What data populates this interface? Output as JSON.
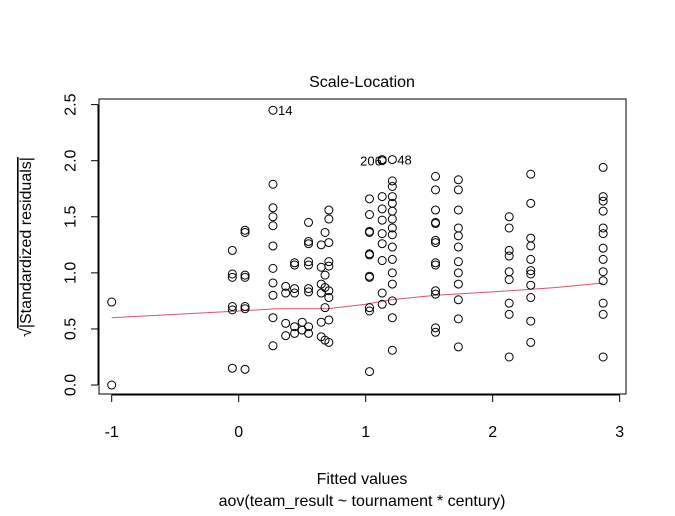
{
  "chart_data": {
    "type": "scatter",
    "title": "Scale-Location",
    "xlabel": "Fitted values",
    "subtitle": "aov(team_result ~ tournament * century)",
    "ylabel_radical": "√",
    "ylabel": "|Standardized residuals|",
    "xlim": [
      -1.1,
      3.05
    ],
    "ylim": [
      -0.08,
      2.55
    ],
    "x_ticks": [
      -1,
      0,
      1,
      2,
      3
    ],
    "x_tick_labels": [
      "-1",
      "0",
      "1",
      "2",
      "3"
    ],
    "y_ticks": [
      0.0,
      0.5,
      1.0,
      1.5,
      2.0,
      2.5
    ],
    "y_tick_labels": [
      "0.0",
      "0.5",
      "1.0",
      "1.5",
      "2.0",
      "2.5"
    ],
    "grid": false,
    "point_color": "#000000",
    "smooth_color": "#DF536B",
    "points": [
      {
        "x": -1.0,
        "y": 0.74
      },
      {
        "x": -1.0,
        "y": 0.0
      },
      {
        "x": -0.05,
        "y": 1.2
      },
      {
        "x": -0.05,
        "y": 0.99
      },
      {
        "x": -0.05,
        "y": 0.96
      },
      {
        "x": -0.05,
        "y": 0.7
      },
      {
        "x": -0.05,
        "y": 0.67
      },
      {
        "x": -0.05,
        "y": 0.15
      },
      {
        "x": 0.05,
        "y": 1.38
      },
      {
        "x": 0.05,
        "y": 1.36
      },
      {
        "x": 0.05,
        "y": 0.98
      },
      {
        "x": 0.05,
        "y": 0.96
      },
      {
        "x": 0.05,
        "y": 0.7
      },
      {
        "x": 0.05,
        "y": 0.68
      },
      {
        "x": 0.05,
        "y": 0.14
      },
      {
        "x": 0.27,
        "y": 2.45
      },
      {
        "x": 0.27,
        "y": 1.79
      },
      {
        "x": 0.27,
        "y": 1.58
      },
      {
        "x": 0.27,
        "y": 1.5
      },
      {
        "x": 0.27,
        "y": 1.42
      },
      {
        "x": 0.27,
        "y": 1.24
      },
      {
        "x": 0.27,
        "y": 1.04
      },
      {
        "x": 0.27,
        "y": 0.91
      },
      {
        "x": 0.27,
        "y": 0.8
      },
      {
        "x": 0.27,
        "y": 0.6
      },
      {
        "x": 0.27,
        "y": 0.35
      },
      {
        "x": 0.37,
        "y": 0.88
      },
      {
        "x": 0.37,
        "y": 0.82
      },
      {
        "x": 0.37,
        "y": 0.55
      },
      {
        "x": 0.37,
        "y": 0.44
      },
      {
        "x": 0.44,
        "y": 1.09
      },
      {
        "x": 0.44,
        "y": 1.07
      },
      {
        "x": 0.44,
        "y": 0.86
      },
      {
        "x": 0.44,
        "y": 0.82
      },
      {
        "x": 0.44,
        "y": 0.52
      },
      {
        "x": 0.44,
        "y": 0.46
      },
      {
        "x": 0.5,
        "y": 0.56
      },
      {
        "x": 0.5,
        "y": 0.49
      },
      {
        "x": 0.55,
        "y": 1.45
      },
      {
        "x": 0.55,
        "y": 1.28
      },
      {
        "x": 0.55,
        "y": 1.26
      },
      {
        "x": 0.55,
        "y": 1.1
      },
      {
        "x": 0.55,
        "y": 1.07
      },
      {
        "x": 0.55,
        "y": 0.86
      },
      {
        "x": 0.55,
        "y": 0.83
      },
      {
        "x": 0.55,
        "y": 0.52
      },
      {
        "x": 0.55,
        "y": 0.46
      },
      {
        "x": 0.65,
        "y": 1.25
      },
      {
        "x": 0.65,
        "y": 1.05
      },
      {
        "x": 0.65,
        "y": 0.9
      },
      {
        "x": 0.65,
        "y": 0.82
      },
      {
        "x": 0.65,
        "y": 0.56
      },
      {
        "x": 0.65,
        "y": 0.43
      },
      {
        "x": 0.68,
        "y": 1.36
      },
      {
        "x": 0.68,
        "y": 0.98
      },
      {
        "x": 0.68,
        "y": 0.87
      },
      {
        "x": 0.68,
        "y": 0.69
      },
      {
        "x": 0.68,
        "y": 0.4
      },
      {
        "x": 0.71,
        "y": 1.56
      },
      {
        "x": 0.71,
        "y": 1.48
      },
      {
        "x": 0.71,
        "y": 1.27
      },
      {
        "x": 0.71,
        "y": 1.1
      },
      {
        "x": 0.71,
        "y": 1.06
      },
      {
        "x": 0.71,
        "y": 0.84
      },
      {
        "x": 0.71,
        "y": 0.78
      },
      {
        "x": 0.71,
        "y": 0.58
      },
      {
        "x": 0.71,
        "y": 0.38
      },
      {
        "x": 1.03,
        "y": 1.66
      },
      {
        "x": 1.03,
        "y": 1.52
      },
      {
        "x": 1.03,
        "y": 1.37
      },
      {
        "x": 1.03,
        "y": 1.36
      },
      {
        "x": 1.03,
        "y": 1.17
      },
      {
        "x": 1.03,
        "y": 1.16
      },
      {
        "x": 1.03,
        "y": 0.97
      },
      {
        "x": 1.03,
        "y": 0.96
      },
      {
        "x": 1.03,
        "y": 0.69
      },
      {
        "x": 1.03,
        "y": 0.66
      },
      {
        "x": 1.03,
        "y": 0.12
      },
      {
        "x": 1.13,
        "y": 2.01
      },
      {
        "x": 1.13,
        "y": 2.0
      },
      {
        "x": 1.13,
        "y": 1.68
      },
      {
        "x": 1.13,
        "y": 1.57
      },
      {
        "x": 1.13,
        "y": 1.47
      },
      {
        "x": 1.13,
        "y": 1.35
      },
      {
        "x": 1.13,
        "y": 1.26
      },
      {
        "x": 1.13,
        "y": 1.11
      },
      {
        "x": 1.13,
        "y": 0.82
      },
      {
        "x": 1.13,
        "y": 0.72
      },
      {
        "x": 1.21,
        "y": 2.01
      },
      {
        "x": 1.21,
        "y": 1.82
      },
      {
        "x": 1.21,
        "y": 1.77
      },
      {
        "x": 1.21,
        "y": 1.68
      },
      {
        "x": 1.21,
        "y": 1.62
      },
      {
        "x": 1.21,
        "y": 1.55
      },
      {
        "x": 1.21,
        "y": 1.48
      },
      {
        "x": 1.21,
        "y": 1.4
      },
      {
        "x": 1.21,
        "y": 1.34
      },
      {
        "x": 1.21,
        "y": 1.23
      },
      {
        "x": 1.21,
        "y": 1.12
      },
      {
        "x": 1.21,
        "y": 1.0
      },
      {
        "x": 1.21,
        "y": 0.9
      },
      {
        "x": 1.21,
        "y": 0.75
      },
      {
        "x": 1.21,
        "y": 0.6
      },
      {
        "x": 1.21,
        "y": 0.31
      },
      {
        "x": 1.55,
        "y": 1.86
      },
      {
        "x": 1.55,
        "y": 1.74
      },
      {
        "x": 1.55,
        "y": 1.56
      },
      {
        "x": 1.55,
        "y": 1.45
      },
      {
        "x": 1.55,
        "y": 1.44
      },
      {
        "x": 1.55,
        "y": 1.29
      },
      {
        "x": 1.55,
        "y": 1.27
      },
      {
        "x": 1.55,
        "y": 1.09
      },
      {
        "x": 1.55,
        "y": 1.07
      },
      {
        "x": 1.55,
        "y": 0.84
      },
      {
        "x": 1.55,
        "y": 0.81
      },
      {
        "x": 1.55,
        "y": 0.51
      },
      {
        "x": 1.55,
        "y": 0.47
      },
      {
        "x": 1.73,
        "y": 1.83
      },
      {
        "x": 1.73,
        "y": 1.74
      },
      {
        "x": 1.73,
        "y": 1.56
      },
      {
        "x": 1.73,
        "y": 1.4
      },
      {
        "x": 1.73,
        "y": 1.33
      },
      {
        "x": 1.73,
        "y": 1.23
      },
      {
        "x": 1.73,
        "y": 1.1
      },
      {
        "x": 1.73,
        "y": 1.0
      },
      {
        "x": 1.73,
        "y": 0.9
      },
      {
        "x": 1.73,
        "y": 0.76
      },
      {
        "x": 1.73,
        "y": 0.59
      },
      {
        "x": 1.73,
        "y": 0.34
      },
      {
        "x": 2.13,
        "y": 1.5
      },
      {
        "x": 2.13,
        "y": 1.4
      },
      {
        "x": 2.13,
        "y": 1.2
      },
      {
        "x": 2.13,
        "y": 1.15
      },
      {
        "x": 2.13,
        "y": 1.01
      },
      {
        "x": 2.13,
        "y": 0.94
      },
      {
        "x": 2.13,
        "y": 0.73
      },
      {
        "x": 2.13,
        "y": 0.63
      },
      {
        "x": 2.13,
        "y": 0.25
      },
      {
        "x": 2.3,
        "y": 1.88
      },
      {
        "x": 2.3,
        "y": 1.62
      },
      {
        "x": 2.3,
        "y": 1.31
      },
      {
        "x": 2.3,
        "y": 1.24
      },
      {
        "x": 2.3,
        "y": 1.12
      },
      {
        "x": 2.3,
        "y": 1.02
      },
      {
        "x": 2.3,
        "y": 0.99
      },
      {
        "x": 2.3,
        "y": 0.89
      },
      {
        "x": 2.3,
        "y": 0.78
      },
      {
        "x": 2.3,
        "y": 0.57
      },
      {
        "x": 2.3,
        "y": 0.38
      },
      {
        "x": 2.87,
        "y": 1.94
      },
      {
        "x": 2.87,
        "y": 1.68
      },
      {
        "x": 2.87,
        "y": 1.64
      },
      {
        "x": 2.87,
        "y": 1.55
      },
      {
        "x": 2.87,
        "y": 1.4
      },
      {
        "x": 2.87,
        "y": 1.35
      },
      {
        "x": 2.87,
        "y": 1.22
      },
      {
        "x": 2.87,
        "y": 1.12
      },
      {
        "x": 2.87,
        "y": 1.01
      },
      {
        "x": 2.87,
        "y": 0.93
      },
      {
        "x": 2.87,
        "y": 0.73
      },
      {
        "x": 2.87,
        "y": 0.63
      },
      {
        "x": 2.87,
        "y": 0.25
      }
    ],
    "annotations": [
      {
        "text": "14",
        "x": 0.27,
        "y": 2.45
      },
      {
        "text": "206",
        "x": 1.13,
        "y": 2.0
      },
      {
        "text": "48",
        "x": 1.21,
        "y": 2.01
      }
    ],
    "smooth_line": [
      {
        "x": -1.0,
        "y": 0.6
      },
      {
        "x": -0.5,
        "y": 0.63
      },
      {
        "x": 0.0,
        "y": 0.66
      },
      {
        "x": 0.3,
        "y": 0.68
      },
      {
        "x": 0.7,
        "y": 0.68
      },
      {
        "x": 1.0,
        "y": 0.72
      },
      {
        "x": 1.2,
        "y": 0.76
      },
      {
        "x": 1.55,
        "y": 0.8
      },
      {
        "x": 2.0,
        "y": 0.83
      },
      {
        "x": 2.5,
        "y": 0.87
      },
      {
        "x": 2.87,
        "y": 0.91
      }
    ]
  }
}
